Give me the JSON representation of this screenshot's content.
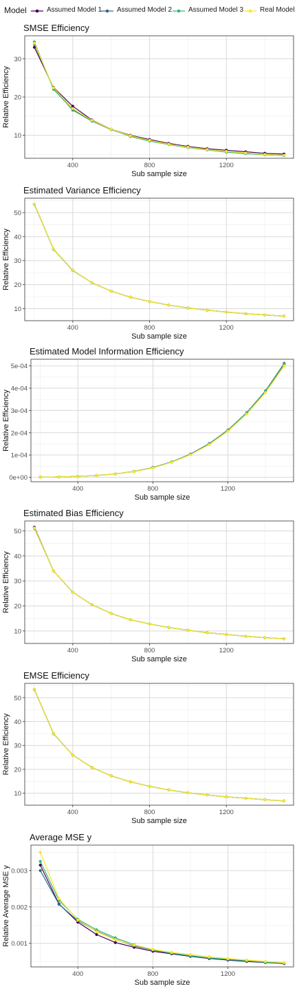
{
  "legend": {
    "title": "Model",
    "items": [
      {
        "name": "Assumed Model 1",
        "color": "#440154"
      },
      {
        "name": "Assumed Model 2",
        "color": "#31688e"
      },
      {
        "name": "Assumed Model 3",
        "color": "#35b779"
      },
      {
        "name": "Real Model",
        "color": "#fde725"
      }
    ]
  },
  "chart_data": [
    {
      "type": "line",
      "title": "SMSE Efficiency",
      "xlabel": "Sub sample size",
      "ylabel": "Relative Efficiency",
      "x": [
        200,
        300,
        400,
        500,
        600,
        700,
        800,
        900,
        1000,
        1100,
        1200,
        1300,
        1400,
        1500
      ],
      "xlim": [
        150,
        1550
      ],
      "ylim": [
        4,
        36
      ],
      "xticks": [
        400,
        800,
        1200
      ],
      "yticks": [
        10,
        20,
        30
      ],
      "ytick_labels": [
        "10",
        "20",
        "30"
      ],
      "series": [
        {
          "name": "Assumed Model 1",
          "color": "#440154",
          "values": [
            33.0,
            22.5,
            17.6,
            14.0,
            11.6,
            10.0,
            8.9,
            7.9,
            7.1,
            6.5,
            6.1,
            5.7,
            5.3,
            5.1
          ]
        },
        {
          "name": "Assumed Model 2",
          "color": "#31688e",
          "values": [
            33.8,
            22.2,
            16.6,
            13.7,
            11.5,
            9.8,
            8.6,
            7.6,
            6.8,
            6.2,
            5.7,
            5.3,
            5.0,
            4.8
          ]
        },
        {
          "name": "Assumed Model 3",
          "color": "#35b779",
          "values": [
            34.4,
            22.0,
            16.8,
            13.8,
            11.6,
            9.7,
            8.5,
            7.6,
            6.8,
            6.2,
            5.6,
            5.2,
            4.9,
            4.7
          ]
        },
        {
          "name": "Real Model",
          "color": "#fde725",
          "values": [
            34.0,
            22.4,
            17.0,
            13.9,
            11.6,
            9.9,
            8.7,
            7.7,
            6.9,
            6.3,
            5.8,
            5.4,
            5.0,
            4.8
          ]
        }
      ]
    },
    {
      "type": "line",
      "title": "Estimated Variance Efficiency",
      "xlabel": "Sub sample size",
      "ylabel": "Relative Efficiency",
      "x": [
        200,
        300,
        400,
        500,
        600,
        700,
        800,
        900,
        1000,
        1100,
        1200,
        1300,
        1400,
        1500
      ],
      "xlim": [
        150,
        1550
      ],
      "ylim": [
        5,
        56
      ],
      "xticks": [
        400,
        800,
        1200
      ],
      "yticks": [
        10,
        20,
        30,
        40,
        50
      ],
      "ytick_labels": [
        "10",
        "20",
        "30",
        "40",
        "50"
      ],
      "series": [
        {
          "name": "Assumed Model 1",
          "color": "#440154",
          "values": [
            53.5,
            34.8,
            26.0,
            20.8,
            17.3,
            14.8,
            13.0,
            11.5,
            10.3,
            9.4,
            8.6,
            7.9,
            7.4,
            6.9
          ]
        },
        {
          "name": "Assumed Model 2",
          "color": "#31688e",
          "values": [
            53.4,
            34.7,
            25.9,
            20.8,
            17.3,
            14.8,
            13.0,
            11.5,
            10.3,
            9.4,
            8.6,
            7.9,
            7.4,
            6.9
          ]
        },
        {
          "name": "Assumed Model 3",
          "color": "#35b779",
          "values": [
            53.5,
            34.8,
            26.0,
            20.8,
            17.3,
            14.8,
            13.0,
            11.5,
            10.3,
            9.4,
            8.6,
            7.9,
            7.4,
            6.9
          ]
        },
        {
          "name": "Real Model",
          "color": "#fde725",
          "values": [
            53.5,
            34.8,
            26.0,
            20.8,
            17.3,
            14.8,
            13.0,
            11.5,
            10.3,
            9.4,
            8.6,
            7.9,
            7.4,
            6.9
          ]
        }
      ]
    },
    {
      "type": "line",
      "title": "Estimated Model Information Efficiency",
      "xlabel": "Sub sample size",
      "ylabel": "Relative Efficiency",
      "x": [
        200,
        300,
        400,
        500,
        600,
        700,
        800,
        900,
        1000,
        1100,
        1200,
        1300,
        1400,
        1500
      ],
      "xlim": [
        150,
        1550
      ],
      "ylim": [
        -2e-05,
        0.00053
      ],
      "xticks": [
        400,
        800,
        1200
      ],
      "yticks": [
        0,
        0.0001,
        0.0002,
        0.0003,
        0.0004,
        0.0005
      ],
      "ytick_labels": [
        "0e+00",
        "1e-04",
        "2e-04",
        "3e-04",
        "4e-04",
        "5e-04"
      ],
      "series": [
        {
          "name": "Assumed Model 1",
          "color": "#440154",
          "values": [
            5e-07,
            1.5e-06,
            4e-06,
            8e-06,
            1.5e-05,
            2.6e-05,
            4.3e-05,
            6.8e-05,
            0.000102,
            0.000148,
            0.000209,
            0.000287,
            0.000385,
            0.000508
          ]
        },
        {
          "name": "Assumed Model 2",
          "color": "#31688e",
          "values": [
            5e-07,
            1.5e-06,
            4e-06,
            8e-06,
            1.5e-05,
            2.7e-05,
            4.4e-05,
            6.9e-05,
            0.000104,
            0.000151,
            0.000212,
            0.00029,
            0.000388,
            0.000512
          ]
        },
        {
          "name": "Assumed Model 3",
          "color": "#35b779",
          "values": [
            5e-07,
            1.5e-06,
            4e-06,
            8e-06,
            1.5e-05,
            2.6e-05,
            4.3e-05,
            6.8e-05,
            0.000102,
            0.000149,
            0.00021,
            0.000288,
            0.000386,
            0.00051
          ]
        },
        {
          "name": "Real Model",
          "color": "#fde725",
          "values": [
            5e-07,
            1.5e-06,
            4e-06,
            8e-06,
            1.5e-05,
            2.6e-05,
            4.2e-05,
            6.7e-05,
            0.000101,
            0.000147,
            0.000207,
            0.000284,
            0.00038,
            0.0005
          ]
        }
      ]
    },
    {
      "type": "line",
      "title": "Estimated Bias Efficiency",
      "xlabel": "Sub sample size",
      "ylabel": "Relative Efficiency",
      "x": [
        200,
        300,
        400,
        500,
        600,
        700,
        800,
        900,
        1000,
        1100,
        1200,
        1300,
        1400,
        1500
      ],
      "xlim": [
        150,
        1550
      ],
      "ylim": [
        5,
        54
      ],
      "xticks": [
        400,
        800,
        1200
      ],
      "yticks": [
        10,
        20,
        30,
        40,
        50
      ],
      "ytick_labels": [
        "10",
        "20",
        "30",
        "40",
        "50"
      ],
      "series": [
        {
          "name": "Assumed Model 1",
          "color": "#440154",
          "values": [
            51.5,
            34.0,
            25.5,
            20.5,
            17.0,
            14.5,
            12.8,
            11.4,
            10.3,
            9.3,
            8.6,
            7.9,
            7.3,
            6.9
          ]
        },
        {
          "name": "Assumed Model 2",
          "color": "#31688e",
          "values": [
            51.2,
            34.0,
            25.5,
            20.5,
            17.0,
            14.5,
            12.8,
            11.4,
            10.3,
            9.3,
            8.6,
            7.9,
            7.3,
            6.9
          ]
        },
        {
          "name": "Assumed Model 3",
          "color": "#35b779",
          "values": [
            51.0,
            34.0,
            25.5,
            20.5,
            17.0,
            14.5,
            12.8,
            11.4,
            10.3,
            9.3,
            8.6,
            7.9,
            7.3,
            6.9
          ]
        },
        {
          "name": "Real Model",
          "color": "#fde725",
          "values": [
            51.2,
            34.0,
            25.5,
            20.5,
            17.0,
            14.5,
            12.8,
            11.4,
            10.3,
            9.3,
            8.6,
            7.9,
            7.3,
            6.9
          ]
        }
      ]
    },
    {
      "type": "line",
      "title": "EMSE Efficiency",
      "xlabel": "Sub sample size",
      "ylabel": "Relative Efficiency",
      "x": [
        200,
        300,
        400,
        500,
        600,
        700,
        800,
        900,
        1000,
        1100,
        1200,
        1300,
        1400,
        1500
      ],
      "xlim": [
        150,
        1550
      ],
      "ylim": [
        5,
        56
      ],
      "xticks": [
        400,
        800,
        1200
      ],
      "yticks": [
        10,
        20,
        30,
        40,
        50
      ],
      "ytick_labels": [
        "10",
        "20",
        "30",
        "40",
        "50"
      ],
      "series": [
        {
          "name": "Assumed Model 1",
          "color": "#440154",
          "values": [
            53.5,
            35.0,
            26.0,
            20.8,
            17.3,
            14.8,
            12.9,
            11.4,
            10.2,
            9.3,
            8.5,
            7.9,
            7.3,
            6.8
          ]
        },
        {
          "name": "Assumed Model 2",
          "color": "#31688e",
          "values": [
            53.4,
            34.9,
            26.0,
            20.8,
            17.3,
            14.8,
            12.9,
            11.4,
            10.2,
            9.3,
            8.5,
            7.9,
            7.3,
            6.8
          ]
        },
        {
          "name": "Assumed Model 3",
          "color": "#35b779",
          "values": [
            53.5,
            35.0,
            26.0,
            20.8,
            17.3,
            14.8,
            12.9,
            11.4,
            10.2,
            9.3,
            8.5,
            7.9,
            7.3,
            6.8
          ]
        },
        {
          "name": "Real Model",
          "color": "#fde725",
          "values": [
            53.5,
            35.0,
            26.0,
            20.8,
            17.3,
            14.8,
            12.9,
            11.4,
            10.2,
            9.3,
            8.5,
            7.9,
            7.3,
            6.8
          ]
        }
      ]
    },
    {
      "type": "line",
      "title": "Average MSE y",
      "xlabel": "Sub sample size",
      "ylabel": "Relative Average MSE y",
      "x": [
        200,
        300,
        400,
        500,
        600,
        700,
        800,
        900,
        1000,
        1100,
        1200,
        1300,
        1400,
        1500
      ],
      "xlim": [
        150,
        1550
      ],
      "ylim": [
        0.00035,
        0.0037
      ],
      "xticks": [
        400,
        800,
        1200
      ],
      "yticks": [
        0.001,
        0.002,
        0.003
      ],
      "ytick_labels": [
        "0.001",
        "0.002",
        "0.003"
      ],
      "series": [
        {
          "name": "Assumed Model 1",
          "color": "#440154",
          "values": [
            0.00315,
            0.00208,
            0.00158,
            0.00124,
            0.00102,
            0.00089,
            0.00078,
            0.00071,
            0.00064,
            0.00058,
            0.00054,
            0.0005,
            0.00047,
            0.00044
          ]
        },
        {
          "name": "Assumed Model 2",
          "color": "#31688e",
          "values": [
            0.003,
            0.00207,
            0.00162,
            0.00133,
            0.00111,
            0.00093,
            0.00081,
            0.00072,
            0.00065,
            0.00059,
            0.00055,
            0.00051,
            0.00048,
            0.00045
          ]
        },
        {
          "name": "Assumed Model 3",
          "color": "#35b779",
          "values": [
            0.00325,
            0.00218,
            0.00166,
            0.00137,
            0.00115,
            0.00096,
            0.00082,
            0.00073,
            0.00066,
            0.0006,
            0.00056,
            0.00052,
            0.00048,
            0.00045
          ]
        },
        {
          "name": "Real Model",
          "color": "#fde725",
          "values": [
            0.0035,
            0.00222,
            0.00164,
            0.00132,
            0.0011,
            0.00095,
            0.00083,
            0.00075,
            0.00069,
            0.00063,
            0.00058,
            0.00054,
            0.0005,
            0.00047
          ]
        }
      ]
    }
  ]
}
